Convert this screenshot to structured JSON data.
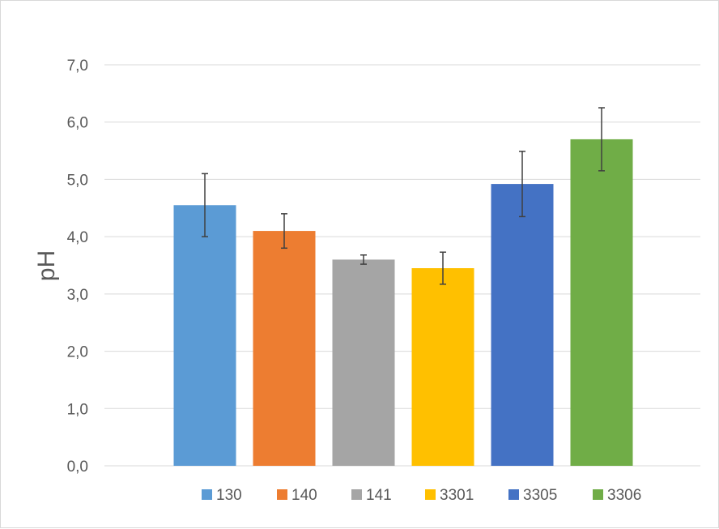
{
  "chart_data": {
    "type": "bar",
    "title": "",
    "xlabel": "",
    "ylabel": "pH",
    "ylim": [
      0,
      7
    ],
    "yticks": [
      "0,0",
      "1,0",
      "2,0",
      "3,0",
      "4,0",
      "5,0",
      "6,0",
      "7,0"
    ],
    "grid": true,
    "legend_position": "bottom",
    "categories": [
      "130",
      "140",
      "141",
      "3301",
      "3305",
      "3306"
    ],
    "values": [
      4.55,
      4.1,
      3.6,
      3.45,
      4.92,
      5.7
    ],
    "error": [
      0.55,
      0.3,
      0.08,
      0.28,
      0.57,
      0.55
    ],
    "colors": [
      "#5B9BD5",
      "#ED7D31",
      "#A5A5A5",
      "#FFC000",
      "#4472C4",
      "#70AD47"
    ]
  }
}
